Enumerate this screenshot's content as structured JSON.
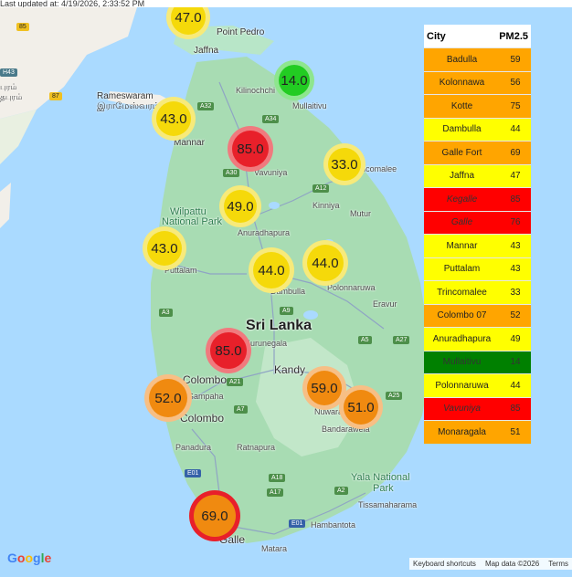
{
  "header": {
    "updated_text": "Last updated at: 4/19/2026, 2:33:52 PM"
  },
  "legend": {
    "col_city": "City",
    "col_value": "PM2.5",
    "rows": [
      {
        "city": "Badulla",
        "value": "59",
        "color": "#ffa500"
      },
      {
        "city": "Kolonnawa",
        "value": "56",
        "color": "#ffa500"
      },
      {
        "city": "Kotte",
        "value": "75",
        "color": "#ffa500"
      },
      {
        "city": "Dambulla",
        "value": "44",
        "color": "#ffff00"
      },
      {
        "city": "Galle Fort",
        "value": "69",
        "color": "#ffa500"
      },
      {
        "city": "Jaffna",
        "value": "47",
        "color": "#ffff00"
      },
      {
        "city": "Kegalle",
        "value": "85",
        "color": "#ff0000"
      },
      {
        "city": "Galle",
        "value": "76",
        "color": "#ff0000"
      },
      {
        "city": "Mannar",
        "value": "43",
        "color": "#ffff00"
      },
      {
        "city": "Puttalam",
        "value": "43",
        "color": "#ffff00"
      },
      {
        "city": "Trincomalee",
        "value": "33",
        "color": "#ffff00"
      },
      {
        "city": "Colombo 07",
        "value": "52",
        "color": "#ffa500"
      },
      {
        "city": "Anuradhapura",
        "value": "49",
        "color": "#ffff00"
      },
      {
        "city": "Mullaitivu",
        "value": "14",
        "color": "#008000"
      },
      {
        "city": "Polonnaruwa",
        "value": "44",
        "color": "#ffff00"
      },
      {
        "city": "Vavuniya",
        "value": "85",
        "color": "#ff0000"
      },
      {
        "city": "Monaragala",
        "value": "51",
        "color": "#ffa500"
      }
    ]
  },
  "markers": [
    {
      "label": "47.0",
      "color": "#f5d90a",
      "halo": "#f7ea7a",
      "kind": "moderate"
    },
    {
      "label": "14.0",
      "color": "#22cc22",
      "halo": "#8ee68e",
      "kind": "good"
    },
    {
      "label": "43.0",
      "color": "#f5d90a",
      "halo": "#f7ea7a",
      "kind": "moderate"
    },
    {
      "label": "85.0",
      "color": "#e8202a",
      "halo": "#f07a7e",
      "kind": "unhealthy"
    },
    {
      "label": "33.0",
      "color": "#f5d90a",
      "halo": "#f7ea7a",
      "kind": "moderate"
    },
    {
      "label": "49.0",
      "color": "#f5d90a",
      "halo": "#f7ea7a",
      "kind": "moderate"
    },
    {
      "label": "43.0",
      "color": "#f5d90a",
      "halo": "#f7ea7a",
      "kind": "moderate"
    },
    {
      "label": "44.0",
      "color": "#f5d90a",
      "halo": "#f7ea7a",
      "kind": "moderate"
    },
    {
      "label": "44.0",
      "color": "#f5d90a",
      "halo": "#f7ea7a",
      "kind": "moderate"
    },
    {
      "label": "85.0",
      "color": "#e8202a",
      "halo": "#f07a7e",
      "kind": "unhealthy"
    },
    {
      "label": "52.0",
      "color": "#f08a10",
      "halo": "#f7bf85",
      "kind": "sensitive"
    },
    {
      "label": "59.0",
      "color": "#f08a10",
      "halo": "#f7bf85",
      "kind": "sensitive"
    },
    {
      "label": "51.0",
      "color": "#f08a10",
      "halo": "#f7bf85",
      "kind": "sensitive"
    },
    {
      "label": "69.0",
      "color": "#f08a10",
      "halo": "#e8202a",
      "kind": "sensitive"
    }
  ],
  "places": {
    "point_pedro": "Point Pedro",
    "jaffna": "Jaffna",
    "rameswaram": "Rameswaram",
    "rameswaram_ta": "இராமேஸ்வரம்",
    "kilinochchi": "Kilinochchi",
    "mullaitivu": "Mullaitivu",
    "mannar": "Mannar",
    "vavuniya": "Vavuniya",
    "trincomalee": "Trincomalee",
    "kinniya": "Kinniya",
    "mutur": "Mutur",
    "wilpattu": "Wilpattu",
    "national_park": "National Park",
    "anuradhapura": "Anuradhapura",
    "puttalam": "Puttalam",
    "dambulla": "Dambulla",
    "polonnaruwa": "Polonnaruwa",
    "eravur": "Eravur",
    "sri_lanka": "Sri Lanka",
    "kurunegala": "Kurunegala",
    "kandy": "Kandy",
    "colombo": "Colombo",
    "colombo_small": "Colombo",
    "gampaha": "Gampaha",
    "nuwara_eliya": "Nuwara Eliya",
    "bandarawela": "Bandarawela",
    "panadura": "Panadura",
    "ratnapura": "Ratnapura",
    "yala": "Yala National",
    "park": "Park",
    "tissamaharama": "Tissamaharama",
    "hambantota": "Hambantota",
    "galle": "Galle",
    "matara": "Matara",
    "left_town1": "புரம்",
    "left_town2": "தபுரம்"
  },
  "shields": {
    "s85": "85",
    "s87": "87",
    "a32": "A32",
    "a34": "A34",
    "a30": "A30",
    "a12": "A12",
    "a9": "A9",
    "a3": "A3",
    "a5": "A5",
    "a27": "A27",
    "a21": "A21",
    "a7": "A7",
    "a25": "A25",
    "e01": "E01",
    "e01b": "E01",
    "a18": "A18",
    "a17": "A17",
    "a2": "A2",
    "h43": "H43"
  },
  "footer": {
    "google": "Google",
    "keyboard": "Keyboard shortcuts",
    "mapdata": "Map data ©2026",
    "terms": "Terms"
  }
}
